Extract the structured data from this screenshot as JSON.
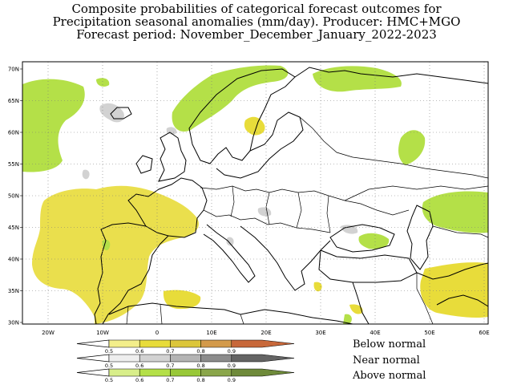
{
  "title": {
    "line1": "Composite probabilities of categorical forecast outcomes for",
    "line2": "Precipitation seasonal anomalies (mm/day). Producer: HMC+MGO",
    "line3": "Forecast period: November_December_January_2022-2023"
  },
  "map": {
    "lat_labels": [
      "70N",
      "65N",
      "60N",
      "55N",
      "50N",
      "45N",
      "40N",
      "35N",
      "30N"
    ],
    "lon_labels": [
      "20W",
      "10W",
      "0",
      "10E",
      "20E",
      "30E",
      "40E",
      "50E",
      "60E"
    ],
    "colors": {
      "below": [
        "#f3ee8a",
        "#e8dc3a",
        "#dcc63a",
        "#d39a4a",
        "#c8683a"
      ],
      "near": [
        "#eeeeee",
        "#d2d2d2",
        "#b4b4b4",
        "#8c8c8c",
        "#646464"
      ],
      "above": [
        "#d8ee8a",
        "#b4e048",
        "#98c838",
        "#8aa64a",
        "#6e8a3a"
      ]
    }
  },
  "legend": {
    "ticks": [
      "0.5",
      "0.6",
      "0.7",
      "0.8",
      "0.9"
    ],
    "below_label": "Below normal",
    "near_label": "Near normal",
    "above_label": "Above normal"
  }
}
